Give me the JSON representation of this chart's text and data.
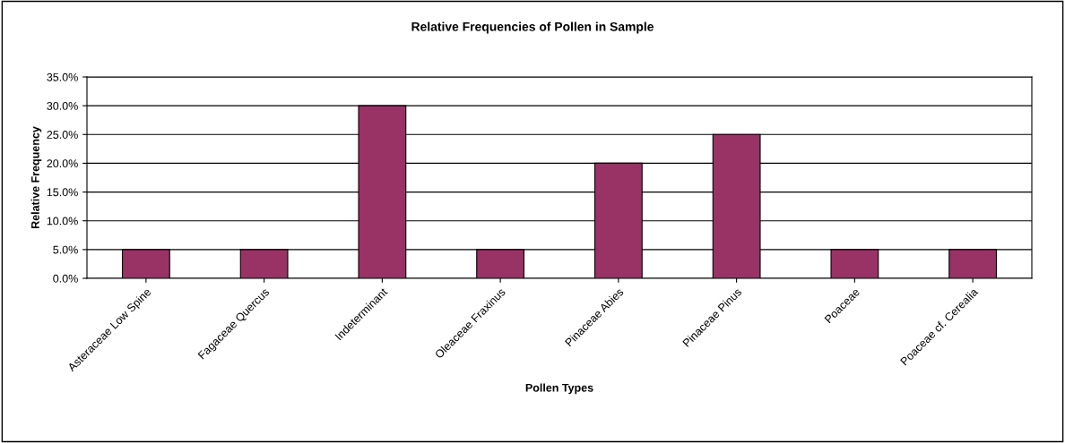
{
  "chart_data": {
    "type": "bar",
    "title": "Relative Frequencies of Pollen in Sample",
    "xlabel": "Pollen Types",
    "ylabel": "Relative Frequency",
    "categories": [
      "Asteraceae Low Spine",
      "Fagaceae Quercus",
      "Indeterminant",
      "Oleaceae Fraxinus",
      "Pinaceae Abies",
      "Pinaceae Pinus",
      "Poaceae",
      "Poaceae cf. Cerealia"
    ],
    "values": [
      5,
      5,
      30,
      5,
      20,
      25,
      5,
      5
    ],
    "color": "#993366",
    "ylim": [
      0,
      35
    ],
    "yticks": [
      {
        "value": 0,
        "label": "0.0%"
      },
      {
        "value": 5,
        "label": "5.0%"
      },
      {
        "value": 10,
        "label": "10.0%"
      },
      {
        "value": 15,
        "label": "15.0%"
      },
      {
        "value": 20,
        "label": "20.0%"
      },
      {
        "value": 25,
        "label": "25.0%"
      },
      {
        "value": 30,
        "label": "30.0%"
      },
      {
        "value": 35,
        "label": "35.0%"
      }
    ],
    "grid": "y"
  }
}
